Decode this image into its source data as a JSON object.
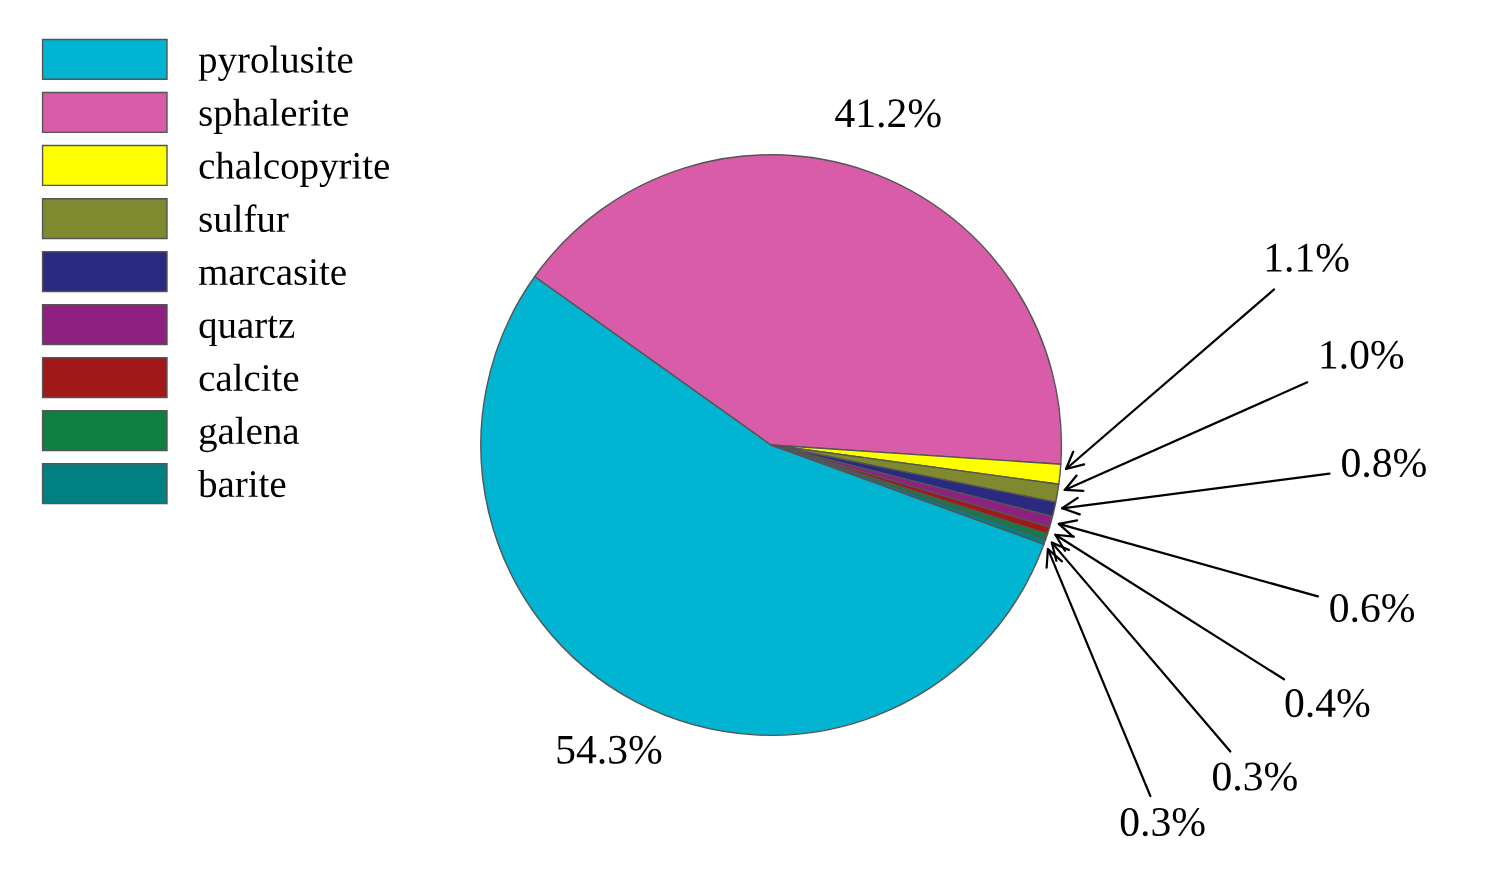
{
  "chart_data": {
    "type": "pie",
    "categories": [
      "pyrolusite",
      "sphalerite",
      "chalcopyrite",
      "sulfur",
      "marcasite",
      "quartz",
      "calcite",
      "galena",
      "barite"
    ],
    "values": [
      54.3,
      41.2,
      1.1,
      1.0,
      0.8,
      0.6,
      0.4,
      0.3,
      0.3
    ],
    "colors": [
      "#00b4d2",
      "#d85ca8",
      "#ffff00",
      "#7f8a30",
      "#2a2a80",
      "#8e2080",
      "#a01818",
      "#108040",
      "#008080"
    ],
    "value_labels": [
      "54.3%",
      "41.2%",
      "1.1%",
      "1.0%",
      "0.8%",
      "0.6%",
      "0.4%",
      "0.3%",
      "0.3%"
    ],
    "legend": "top left"
  }
}
